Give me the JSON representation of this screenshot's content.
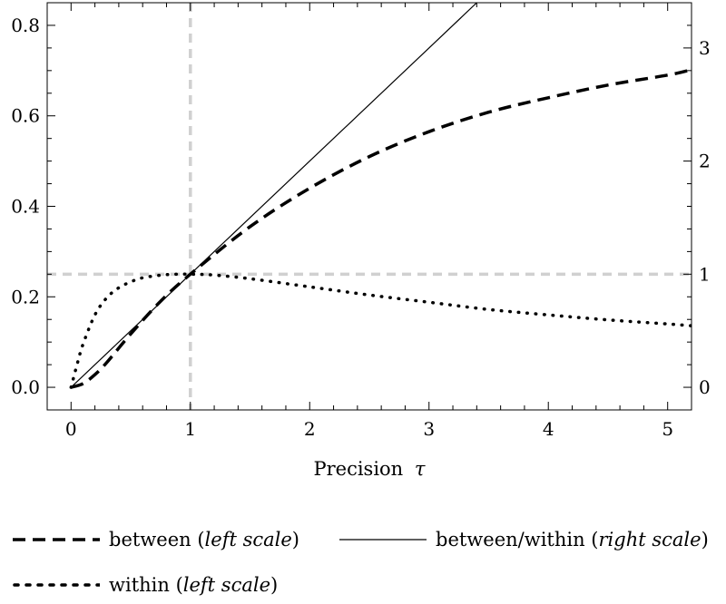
{
  "chart_data": {
    "type": "line",
    "title": "",
    "xlabel": "Precision",
    "xlabel_symbol": "τ",
    "ylabel_left": "",
    "ylabel_right": "",
    "xlim": [
      -0.2,
      5.2
    ],
    "ylim_left": [
      -0.05,
      0.85
    ],
    "ylim_right": [
      -0.2,
      3.4
    ],
    "x_ticks": [
      0,
      1,
      2,
      3,
      4,
      5
    ],
    "y_left_ticks": [
      0.0,
      0.2,
      0.4,
      0.6,
      0.8
    ],
    "y_right_ticks": [
      0,
      1,
      2,
      3
    ],
    "grid": false,
    "reference_lines": [
      {
        "orientation": "vertical",
        "x": 1,
        "color": "#d0d0d0",
        "style": "dashed"
      },
      {
        "orientation": "horizontal",
        "y_left": 0.25,
        "color": "#d0d0d0",
        "style": "dashed"
      }
    ],
    "legend_placement": "bottom",
    "series": [
      {
        "name": "between",
        "scale_note": "left scale",
        "axis": "left",
        "style": "dashed",
        "x": [
          0,
          0.1,
          0.2,
          0.3,
          0.5,
          0.75,
          1.0,
          1.5,
          2.0,
          2.5,
          3.0,
          3.5,
          4.0,
          4.5,
          5.0,
          5.2
        ],
        "values": [
          0.0,
          0.008,
          0.028,
          0.055,
          0.118,
          0.19,
          0.25,
          0.355,
          0.44,
          0.51,
          0.565,
          0.608,
          0.64,
          0.668,
          0.69,
          0.702
        ]
      },
      {
        "name": "between/within",
        "scale_note": "right scale",
        "axis": "right",
        "style": "solid",
        "x": [
          0,
          1,
          2,
          3,
          3.4
        ],
        "values": [
          0,
          1,
          2,
          3,
          3.4
        ]
      },
      {
        "name": "within",
        "scale_note": "left scale",
        "axis": "left",
        "style": "dotted",
        "x": [
          0,
          0.05,
          0.1,
          0.2,
          0.3,
          0.4,
          0.5,
          0.6,
          0.8,
          1.0,
          1.2,
          1.5,
          2.0,
          2.5,
          3.0,
          3.5,
          4.0,
          4.5,
          5.0,
          5.2
        ],
        "values": [
          0.0,
          0.05,
          0.095,
          0.16,
          0.198,
          0.22,
          0.233,
          0.242,
          0.249,
          0.25,
          0.248,
          0.24,
          0.222,
          0.204,
          0.188,
          0.172,
          0.16,
          0.149,
          0.14,
          0.136
        ]
      }
    ]
  },
  "legend": {
    "between": {
      "main": "between (",
      "scale": "left scale",
      "close": ")"
    },
    "ratio": {
      "main": "between/within (",
      "scale": "right scale",
      "close": ")"
    },
    "within": {
      "main": "within (",
      "scale": "left scale",
      "close": ")"
    }
  }
}
